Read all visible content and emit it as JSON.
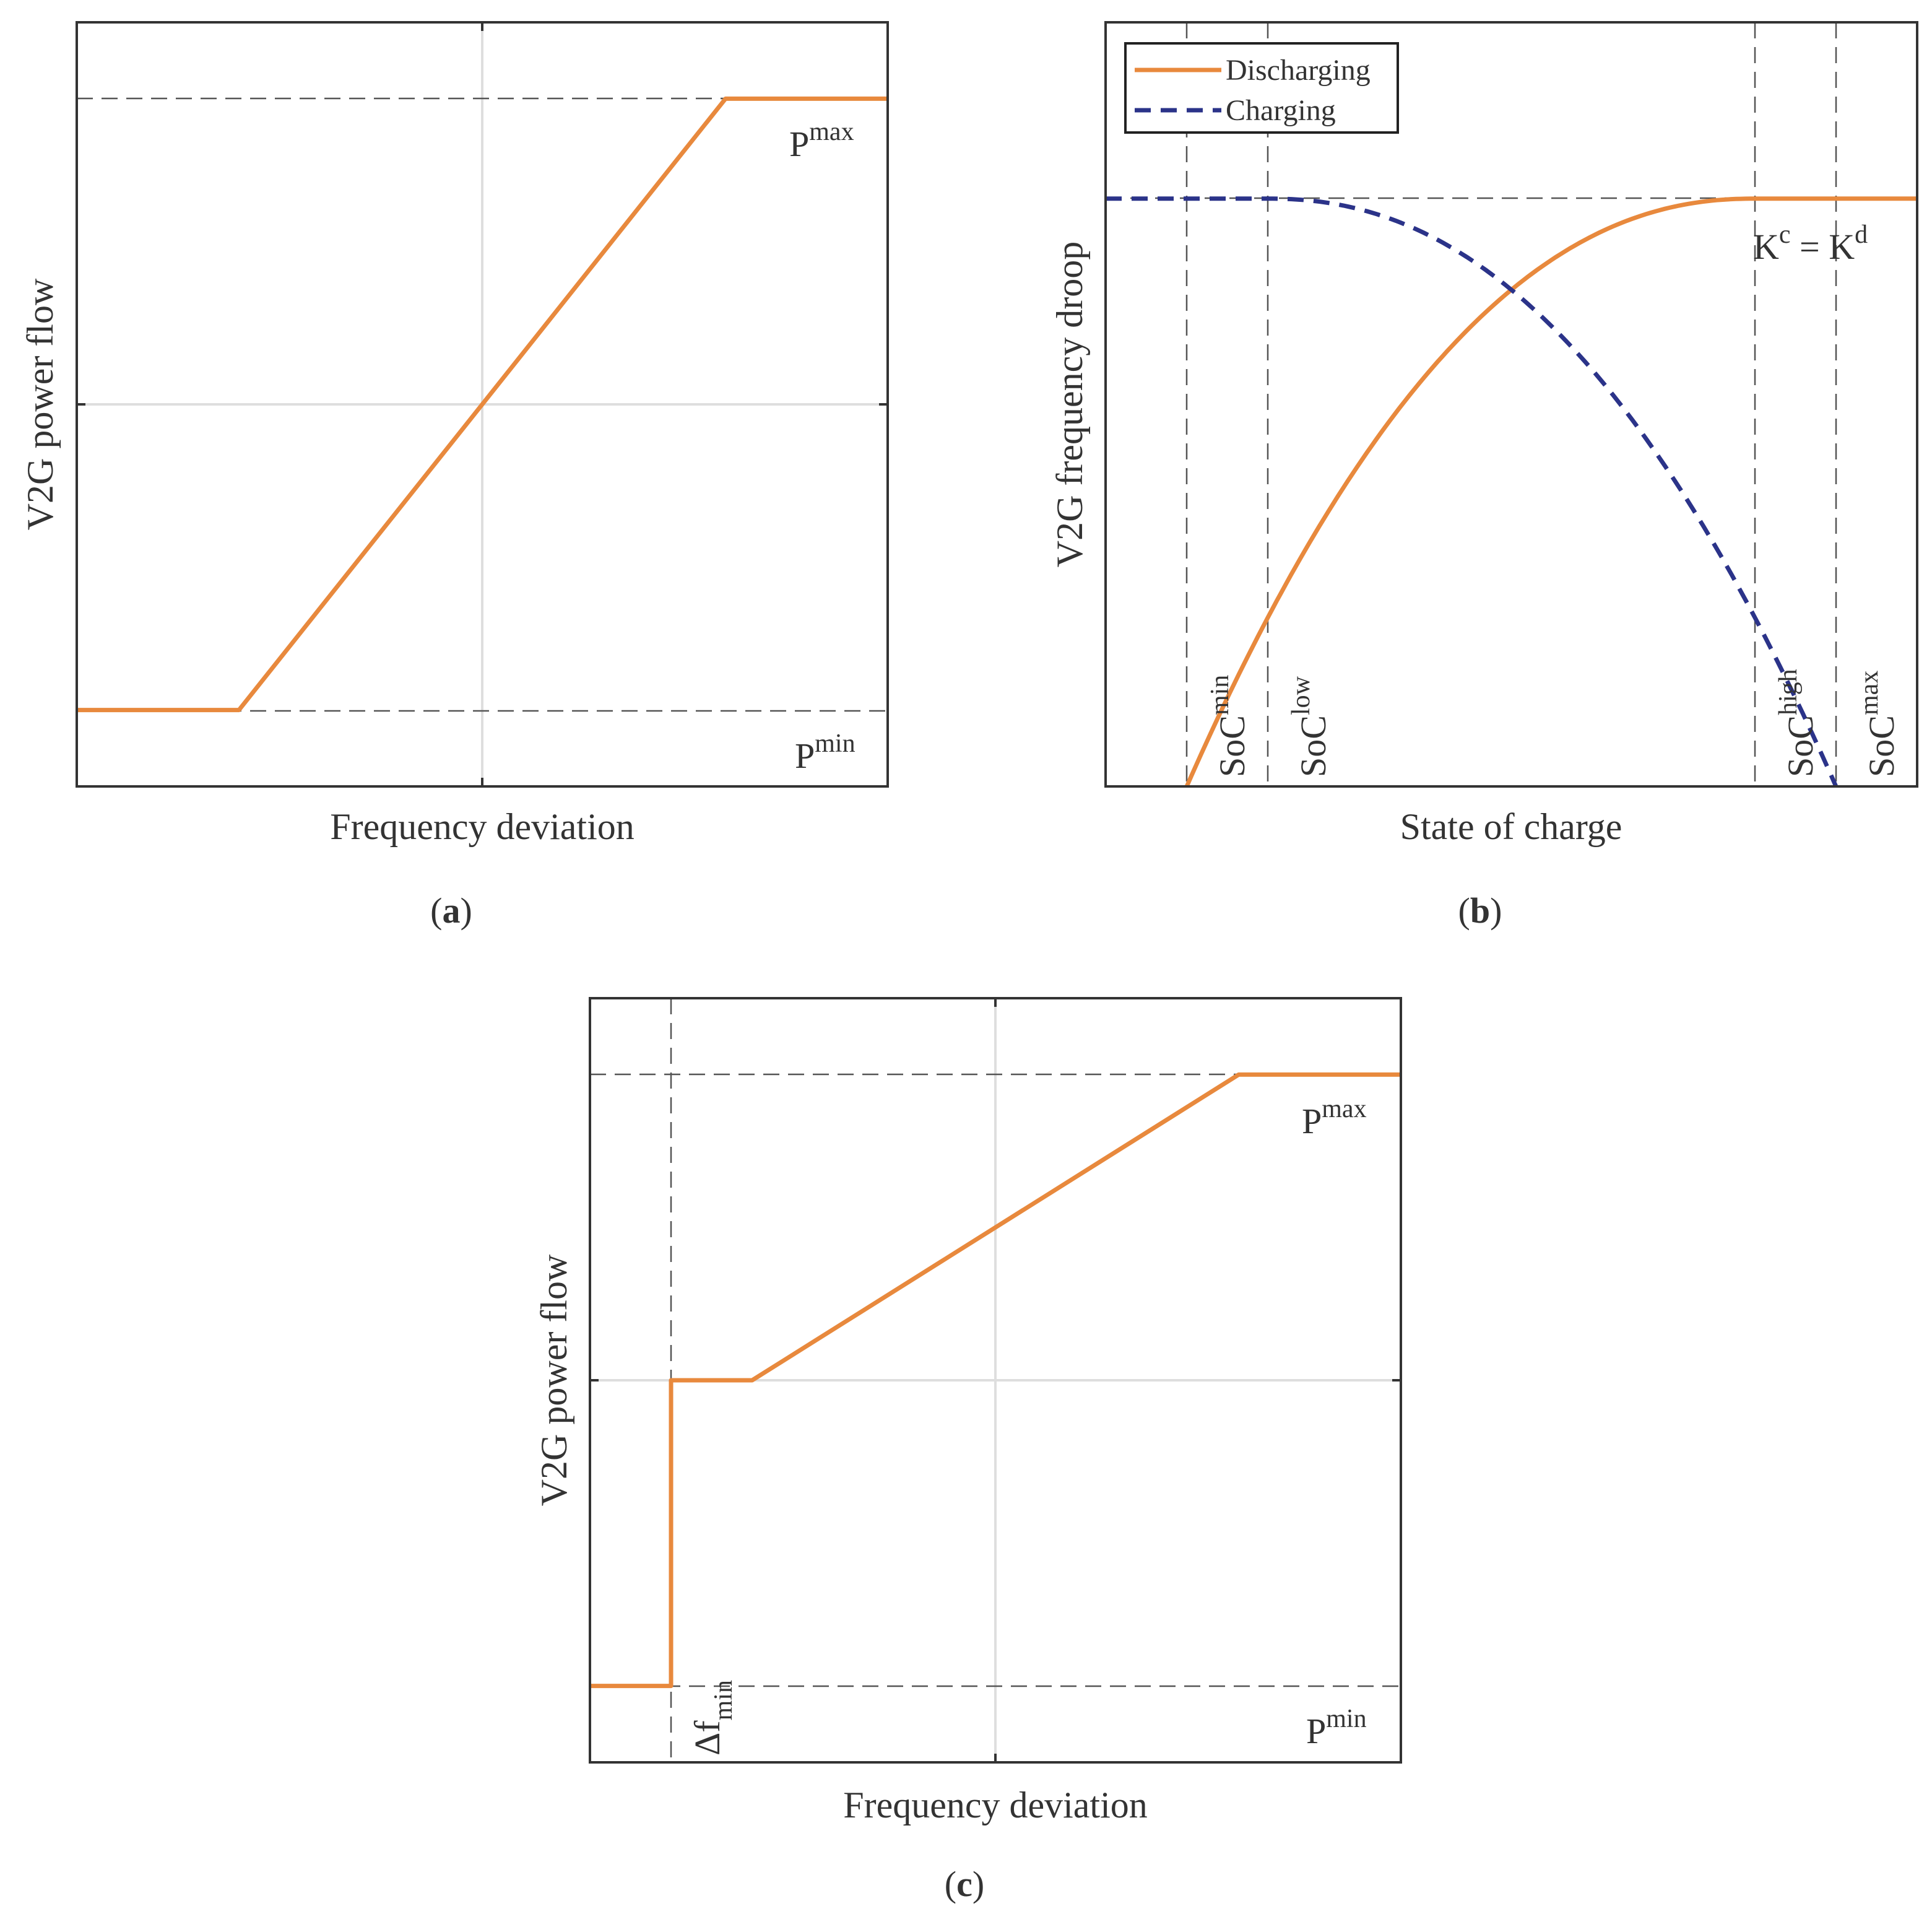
{
  "colors": {
    "discharging": "#e8893d",
    "charging": "#2b3389",
    "frame": "#333333",
    "grid": "#dedede",
    "reference": "#555555"
  },
  "chart_data": [
    {
      "id": "a",
      "type": "line",
      "caption_letter": "a",
      "xlabel": "Frequency deviation",
      "ylabel": "V2G power flow",
      "xlim": [
        -1,
        1
      ],
      "ylim": [
        -1.25,
        1.25
      ],
      "grid": true,
      "x_ticks": [
        0
      ],
      "y_ticks": [
        0
      ],
      "series": [
        {
          "name": "V2G power flow",
          "style": "solid",
          "points": [
            [
              -1,
              -1
            ],
            [
              -0.6,
              -1
            ],
            [
              0.6,
              1
            ],
            [
              1,
              1
            ]
          ]
        }
      ],
      "reference_lines": [
        {
          "orientation": "horizontal",
          "value": 1,
          "label": "P",
          "label_sup": "max"
        },
        {
          "orientation": "horizontal",
          "value": -1,
          "label": "P",
          "label_sup": "min"
        }
      ]
    },
    {
      "id": "b",
      "type": "line",
      "caption_letter": "b",
      "xlabel": "State of charge",
      "ylabel": "V2G frequency droop",
      "xlim": [
        0,
        1
      ],
      "ylim": [
        0,
        1.3
      ],
      "grid": false,
      "legend": {
        "position": "top-left",
        "entries": [
          "Discharging",
          "Charging"
        ]
      },
      "series": [
        {
          "name": "Discharging",
          "style": "solid",
          "x_range": [
            0.1,
            1
          ],
          "flat_from": 0.8
        },
        {
          "name": "Charging",
          "style": "dashed",
          "x_range": [
            0,
            0.9
          ],
          "flat_until": 0.2
        }
      ],
      "reference_lines": [
        {
          "orientation": "horizontal",
          "value": 1,
          "label": "K",
          "label_sup": "c",
          "label_mid": " = K",
          "label_sup2": "d"
        },
        {
          "orientation": "vertical",
          "value": 0.1,
          "label": "SoC",
          "label_sup": "min"
        },
        {
          "orientation": "vertical",
          "value": 0.2,
          "label": "SoC",
          "label_sup": "low"
        },
        {
          "orientation": "vertical",
          "value": 0.8,
          "label": "SoC",
          "label_sup": "high"
        },
        {
          "orientation": "vertical",
          "value": 0.9,
          "label": "SoC",
          "label_sup": "max"
        }
      ]
    },
    {
      "id": "c",
      "type": "line",
      "caption_letter": "c",
      "xlabel": "Frequency deviation",
      "ylabel": "V2G power flow",
      "xlim": [
        -1,
        1
      ],
      "ylim": [
        -1.25,
        1.25
      ],
      "grid": true,
      "x_ticks": [
        0
      ],
      "y_ticks": [
        0
      ],
      "series": [
        {
          "name": "V2G power flow",
          "style": "solid",
          "points": [
            [
              -1,
              -1
            ],
            [
              -0.8,
              -1
            ],
            [
              -0.8,
              0
            ],
            [
              -0.6,
              0
            ],
            [
              0.6,
              1
            ],
            [
              1,
              1
            ]
          ]
        }
      ],
      "reference_lines": [
        {
          "orientation": "horizontal",
          "value": 1,
          "label": "P",
          "label_sup": "max"
        },
        {
          "orientation": "horizontal",
          "value": -1,
          "label": "P",
          "label_sup": "min"
        },
        {
          "orientation": "vertical",
          "value": -0.8,
          "label": "Δf",
          "label_sub": "min"
        }
      ]
    }
  ]
}
